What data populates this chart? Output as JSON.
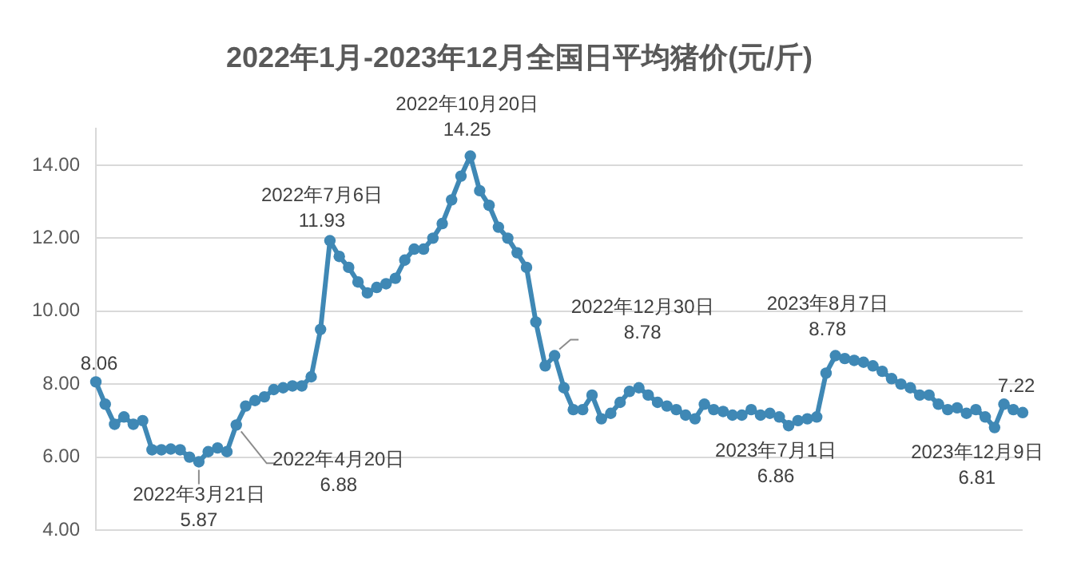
{
  "chart_data": {
    "type": "line",
    "title": "2022年1月-2023年12月全国日平均猪价(元/斤)",
    "tick_labels": "y",
    "grid": "y",
    "marker": "circle",
    "legend": false,
    "ylim": [
      4,
      15
    ],
    "yticks": [
      {
        "value": 4,
        "label": "4.00"
      },
      {
        "value": 6,
        "label": "6.00"
      },
      {
        "value": 8,
        "label": "8.00"
      },
      {
        "value": 10,
        "label": "10.00"
      },
      {
        "value": 12,
        "label": "12.00"
      },
      {
        "value": 14,
        "label": "14.00"
      }
    ],
    "categories": [
      null,
      null,
      null,
      null,
      null,
      null,
      null,
      null,
      null,
      null,
      null,
      null,
      null,
      null,
      null,
      null,
      null,
      null,
      null,
      null,
      null,
      null,
      null,
      null,
      null,
      null,
      null,
      null,
      null,
      null,
      null,
      null,
      null,
      null,
      null,
      null,
      null,
      null,
      null,
      null,
      null,
      null,
      null,
      null,
      null,
      null,
      null,
      null,
      null,
      null,
      null,
      null,
      null,
      null,
      null,
      null,
      null,
      null,
      null,
      null,
      null,
      null,
      null,
      null,
      null,
      null,
      null,
      null,
      null,
      null,
      null,
      null,
      null,
      null,
      null,
      null,
      null,
      null,
      null,
      null,
      null,
      null,
      null,
      null,
      null,
      null,
      null,
      null,
      null,
      null,
      null,
      null,
      null,
      null,
      null,
      null,
      null,
      null,
      null,
      null
    ],
    "series": [
      {
        "color": "#3f88b5",
        "values": [
          8.06,
          7.45,
          6.9,
          7.1,
          6.9,
          7.0,
          6.2,
          6.2,
          6.22,
          6.2,
          6.0,
          5.87,
          6.15,
          6.25,
          6.15,
          6.88,
          7.4,
          7.55,
          7.65,
          7.85,
          7.9,
          7.95,
          7.95,
          8.2,
          9.5,
          11.93,
          11.5,
          11.2,
          10.8,
          10.5,
          10.65,
          10.75,
          10.9,
          11.4,
          11.7,
          11.7,
          12.0,
          12.4,
          13.05,
          13.7,
          14.25,
          13.3,
          12.9,
          12.3,
          12.0,
          11.6,
          11.2,
          9.7,
          8.5,
          8.78,
          7.9,
          7.3,
          7.3,
          7.7,
          7.05,
          7.2,
          7.5,
          7.8,
          7.9,
          7.7,
          7.5,
          7.4,
          7.3,
          7.15,
          7.05,
          7.45,
          7.3,
          7.25,
          7.15,
          7.15,
          7.3,
          7.15,
          7.2,
          7.1,
          6.86,
          7.0,
          7.05,
          7.1,
          8.3,
          8.78,
          8.7,
          8.65,
          8.6,
          8.5,
          8.35,
          8.15,
          8.0,
          7.9,
          7.7,
          7.7,
          7.45,
          7.3,
          7.35,
          7.2,
          7.3,
          7.1,
          6.81,
          7.45,
          7.3,
          7.22
        ]
      }
    ],
    "annotations": [
      {
        "text": "8.06",
        "y": 8.06
      },
      {
        "text": "2022年3月21日\n5.87",
        "y": 5.87
      },
      "2022年4月20日\n6.88",
      {
        "text": "2022年7月6日\n11.93",
        "y": 11.93
      },
      {
        "text": "2022年10月20日\n14.25",
        "y": 14.25
      },
      "2022年12月30日\n8.78",
      {
        "text": "2023年7月1日\n6.86",
        "y": 6.86
      },
      {
        "text": "2023年8月7日\n8.78",
        "y": 8.78
      },
      {
        "text": "2023年12月9日\n6.81",
        "y": 6.81
      },
      {
        "text": "7.22",
        "y": 7.22
      }
    ]
  }
}
